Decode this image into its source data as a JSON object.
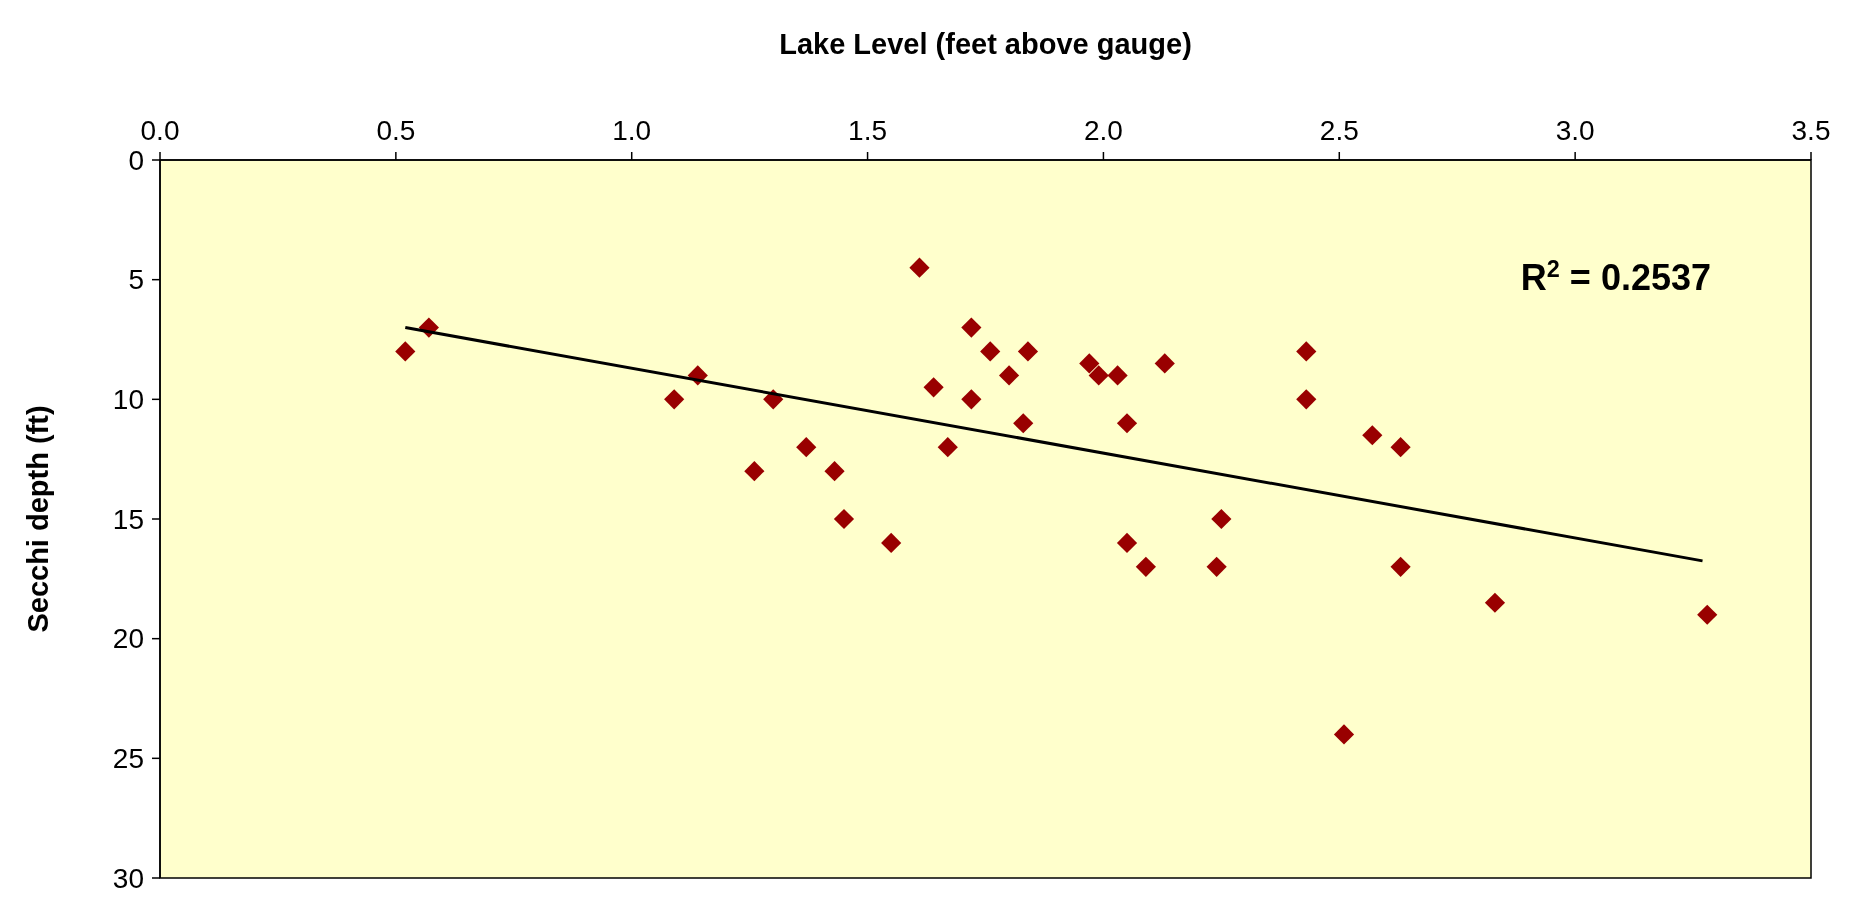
{
  "chart_data": {
    "type": "scatter",
    "xlabel": "Lake Level (feet above gauge)",
    "ylabel": "Secchi depth (ft)",
    "xlim": [
      0,
      3.5
    ],
    "xticks": [
      {
        "value": 0,
        "label": "0.0"
      },
      {
        "value": 0.5,
        "label": "0.5"
      },
      {
        "value": 1,
        "label": "1.0"
      },
      {
        "value": 1.5,
        "label": "1.5"
      },
      {
        "value": 2,
        "label": "2.0"
      },
      {
        "value": 2.5,
        "label": "2.5"
      },
      {
        "value": 3,
        "label": "3.0"
      },
      {
        "value": 3.5,
        "label": "3.5"
      }
    ],
    "ylim": [
      30,
      0
    ],
    "yticks": [
      0,
      5,
      10,
      15,
      20,
      25,
      30
    ],
    "grid": false,
    "series": [
      {
        "marker": "diamond",
        "color": "#990000",
        "x": [
          0.52,
          0.57,
          1.09,
          1.14,
          1.3,
          1.26,
          1.37,
          1.43,
          1.45,
          1.55,
          1.61,
          1.64,
          1.67,
          1.72,
          1.72,
          1.76,
          1.8,
          1.83,
          1.84,
          1.97,
          1.99,
          2.03,
          2.05,
          2.05,
          2.13,
          2.09,
          2.24,
          2.25,
          2.43,
          2.43,
          2.51,
          2.57,
          2.63,
          2.63,
          2.83,
          3.28
        ],
        "values": [
          8,
          7,
          10,
          9,
          10,
          13,
          12,
          13,
          15,
          16,
          4.5,
          9.5,
          12,
          7,
          10,
          8,
          9,
          11,
          8,
          8.5,
          9,
          9,
          11,
          16,
          8.5,
          17,
          17,
          15,
          8,
          10,
          24,
          11.5,
          12,
          17,
          18.5,
          19
        ]
      },
      {
        "type": "line",
        "color": "#000000",
        "x": [
          0.52,
          3.27
        ],
        "values": [
          7,
          16.75
        ]
      }
    ],
    "annotations": [
      "R$^{2}$ = 0.2537"
    ]
  }
}
